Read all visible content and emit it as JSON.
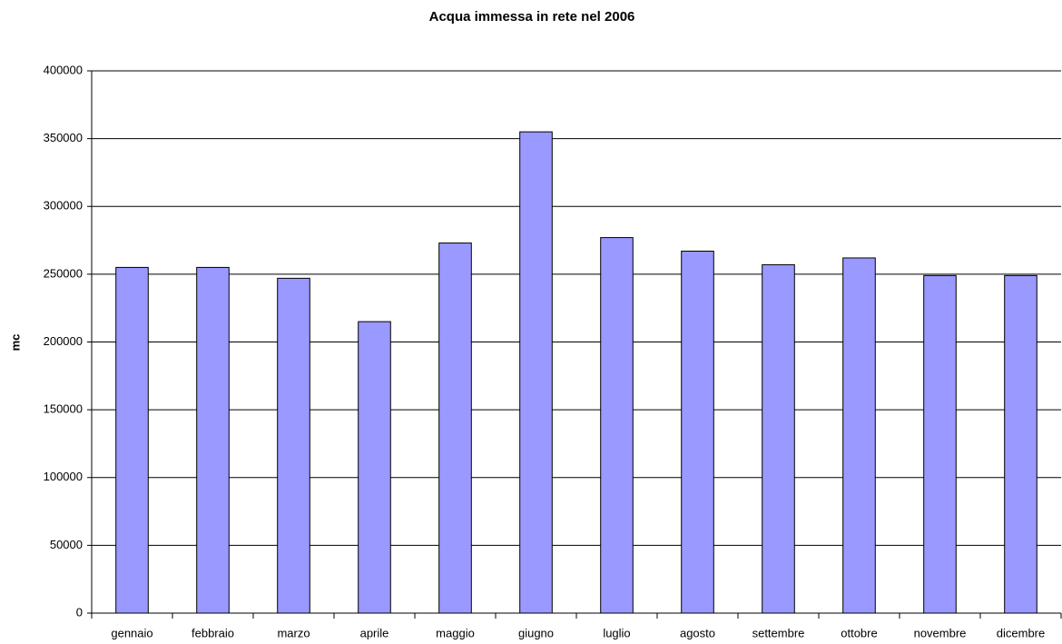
{
  "chart_data": {
    "type": "bar",
    "title": "Acqua immessa in rete nel 2006",
    "y_label": "mc",
    "categories": [
      "gennaio",
      "febbraio",
      "marzo",
      "aprile",
      "maggio",
      "giugno",
      "luglio",
      "agosto",
      "settembre",
      "ottobre",
      "novembre",
      "dicembre"
    ],
    "values": [
      255000,
      255000,
      247000,
      215000,
      273000,
      355000,
      277000,
      267000,
      257000,
      262000,
      249000,
      249000
    ],
    "color": "#9999ff",
    "ylim": [
      0,
      400000
    ],
    "yticks": [
      0,
      50000,
      100000,
      150000,
      200000,
      250000,
      300000,
      350000,
      400000
    ],
    "grid": true
  }
}
